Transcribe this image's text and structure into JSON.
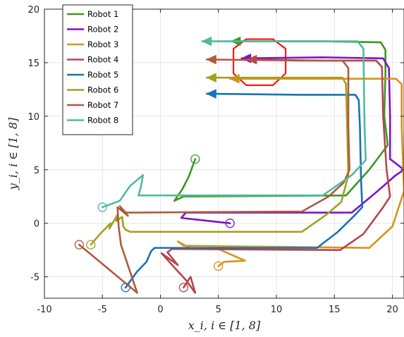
{
  "chart_data": {
    "type": "line",
    "xlabel": "x_i,    i ∈ [1, 8]",
    "ylabel": "y_i,    i ∈ [1, 8]",
    "xlim": [
      -10,
      21
    ],
    "ylim": [
      -7,
      20
    ],
    "xticks": [
      -10,
      -5,
      0,
      5,
      10,
      15,
      20
    ],
    "yticks": [
      -5,
      0,
      5,
      10,
      15,
      20
    ],
    "grid": true,
    "legend_position": "top-left",
    "obstacle": {
      "shape": "octagon",
      "color": "#FF0000",
      "center": [
        8.55,
        15.2
      ],
      "vertices": [
        [
          6.3,
          14.0
        ],
        [
          7.4,
          12.9
        ],
        [
          9.7,
          12.9
        ],
        [
          10.8,
          14.0
        ],
        [
          10.8,
          16.3
        ],
        [
          9.7,
          17.2
        ],
        [
          7.4,
          17.2
        ],
        [
          6.3,
          16.3
        ]
      ]
    },
    "series": [
      {
        "name": "Robot 1",
        "color": "#3A9A1D",
        "start": [
          3.0,
          6.0
        ],
        "points": [
          [
            3.0,
            6.0
          ],
          [
            2.5,
            4.5
          ],
          [
            1.9,
            3.2
          ],
          [
            1.2,
            2.1
          ],
          [
            2.0,
            2.5
          ],
          [
            16.0,
            2.6
          ],
          [
            18.0,
            5.0
          ],
          [
            19.6,
            7.3
          ],
          [
            19.3,
            10.0
          ],
          [
            19.4,
            14.0
          ],
          [
            19.4,
            16.2
          ],
          [
            19.0,
            16.9
          ],
          [
            14.0,
            17.0
          ],
          [
            6.1,
            17.0
          ]
        ]
      },
      {
        "name": "Robot 2",
        "color": "#7E14C4",
        "start": [
          6.0,
          0.0
        ],
        "points": [
          [
            6.0,
            0.0
          ],
          [
            3.5,
            0.3
          ],
          [
            1.8,
            0.5
          ],
          [
            2.2,
            1.0
          ],
          [
            16.5,
            1.0
          ],
          [
            18.5,
            2.8
          ],
          [
            20.3,
            4.5
          ],
          [
            21.0,
            5.0
          ],
          [
            19.8,
            6.0
          ],
          [
            19.8,
            10.0
          ],
          [
            19.7,
            14.5
          ],
          [
            19.2,
            15.4
          ],
          [
            14.0,
            15.5
          ],
          [
            7.0,
            15.4
          ]
        ]
      },
      {
        "name": "Robot 3",
        "color": "#D9931A",
        "start": [
          5.0,
          -4.0
        ],
        "points": [
          [
            5.0,
            -4.0
          ],
          [
            5.5,
            -3.6
          ],
          [
            7.3,
            -3.5
          ],
          [
            5.0,
            -2.4
          ],
          [
            2.5,
            -2.3
          ],
          [
            1.5,
            -1.7
          ],
          [
            2.0,
            -2.1
          ],
          [
            18.0,
            -2.3
          ],
          [
            20.0,
            -0.3
          ],
          [
            21.0,
            3.0
          ],
          [
            20.8,
            9.0
          ],
          [
            20.8,
            13.0
          ],
          [
            20.3,
            13.5
          ],
          [
            14.0,
            13.5
          ],
          [
            6.0,
            13.5
          ]
        ]
      },
      {
        "name": "Robot 4",
        "color": "#B4474E",
        "start": [
          2.0,
          -6.0
        ],
        "points": [
          [
            2.0,
            -6.0
          ],
          [
            2.6,
            -5.0
          ],
          [
            3.0,
            -6.5
          ],
          [
            2.2,
            -5.3
          ],
          [
            1.6,
            -4.6
          ],
          [
            0.1,
            -2.8
          ],
          [
            1.5,
            -3.9
          ],
          [
            0.6,
            -2.7
          ],
          [
            1.0,
            -2.4
          ],
          [
            15.5,
            -2.5
          ],
          [
            17.5,
            -1.0
          ],
          [
            19.2,
            1.5
          ],
          [
            19.8,
            2.5
          ],
          [
            19.5,
            5.0
          ],
          [
            19.2,
            10.0
          ],
          [
            19.1,
            14.6
          ],
          [
            18.6,
            15.2
          ],
          [
            14.0,
            15.2
          ],
          [
            7.5,
            15.3
          ]
        ]
      },
      {
        "name": "Robot 5",
        "color": "#1673B4",
        "start": [
          -3.0,
          -6.0
        ],
        "points": [
          [
            -3.0,
            -6.0
          ],
          [
            -2.0,
            -4.5
          ],
          [
            -1.2,
            -3.6
          ],
          [
            -0.8,
            -2.6
          ],
          [
            -0.5,
            -2.3
          ],
          [
            13.5,
            -2.3
          ],
          [
            15.3,
            -0.8
          ],
          [
            16.8,
            0.8
          ],
          [
            17.4,
            1.5
          ],
          [
            17.3,
            4.0
          ],
          [
            17.2,
            9.0
          ],
          [
            17.1,
            11.5
          ],
          [
            16.8,
            12.0
          ],
          [
            12.0,
            12.0
          ],
          [
            4.0,
            12.1
          ]
        ]
      },
      {
        "name": "Robot 6",
        "color": "#A2A022",
        "start": [
          -6.0,
          -2.0
        ],
        "points": [
          [
            -6.0,
            -2.0
          ],
          [
            -5.2,
            -1.0
          ],
          [
            -4.3,
            0.0
          ],
          [
            -4.4,
            -0.5
          ],
          [
            -3.7,
            0.8
          ],
          [
            -3.8,
            0.2
          ],
          [
            -3.3,
            0.6
          ],
          [
            -3.2,
            -0.3
          ],
          [
            -3.0,
            -0.6
          ],
          [
            -2.6,
            -0.8
          ],
          [
            12.2,
            -0.8
          ],
          [
            14.3,
            0.8
          ],
          [
            15.6,
            2.0
          ],
          [
            16.2,
            4.5
          ],
          [
            16.1,
            9.0
          ],
          [
            16.0,
            13.0
          ],
          [
            15.7,
            13.6
          ],
          [
            12.0,
            13.6
          ],
          [
            4.0,
            13.6
          ]
        ]
      },
      {
        "name": "Robot 7",
        "color": "#AE5A3E",
        "start": [
          -7.0,
          -2.0
        ],
        "points": [
          [
            -7.0,
            -2.0
          ],
          [
            -5.0,
            -3.8
          ],
          [
            -2.0,
            -6.5
          ],
          [
            -3.4,
            -2.0
          ],
          [
            -3.6,
            -0.3
          ],
          [
            -3.7,
            1.5
          ],
          [
            -2.8,
            0.7
          ],
          [
            -3.5,
            1.6
          ],
          [
            -3.0,
            1.0
          ],
          [
            -2.5,
            1.0
          ],
          [
            12.2,
            1.1
          ],
          [
            14.5,
            2.5
          ],
          [
            15.8,
            3.8
          ],
          [
            16.3,
            5.0
          ],
          [
            16.2,
            9.0
          ],
          [
            16.2,
            14.5
          ],
          [
            15.7,
            15.2
          ],
          [
            12.0,
            15.2
          ],
          [
            4.0,
            15.3
          ]
        ]
      },
      {
        "name": "Robot 8",
        "color": "#52B89F",
        "start": [
          -5.0,
          1.5
        ],
        "points": [
          [
            -5.0,
            1.5
          ],
          [
            -3.5,
            2.1
          ],
          [
            -3.0,
            2.9
          ],
          [
            -2.6,
            3.5
          ],
          [
            -1.5,
            4.5
          ],
          [
            -1.7,
            3.3
          ],
          [
            -1.9,
            2.6
          ],
          [
            -1.4,
            2.6
          ],
          [
            14.0,
            2.6
          ],
          [
            16.5,
            4.5
          ],
          [
            17.7,
            5.9
          ],
          [
            17.6,
            9.0
          ],
          [
            17.5,
            16.3
          ],
          [
            17.0,
            17.0
          ],
          [
            12.0,
            17.0
          ],
          [
            3.6,
            17.0
          ]
        ]
      }
    ]
  }
}
